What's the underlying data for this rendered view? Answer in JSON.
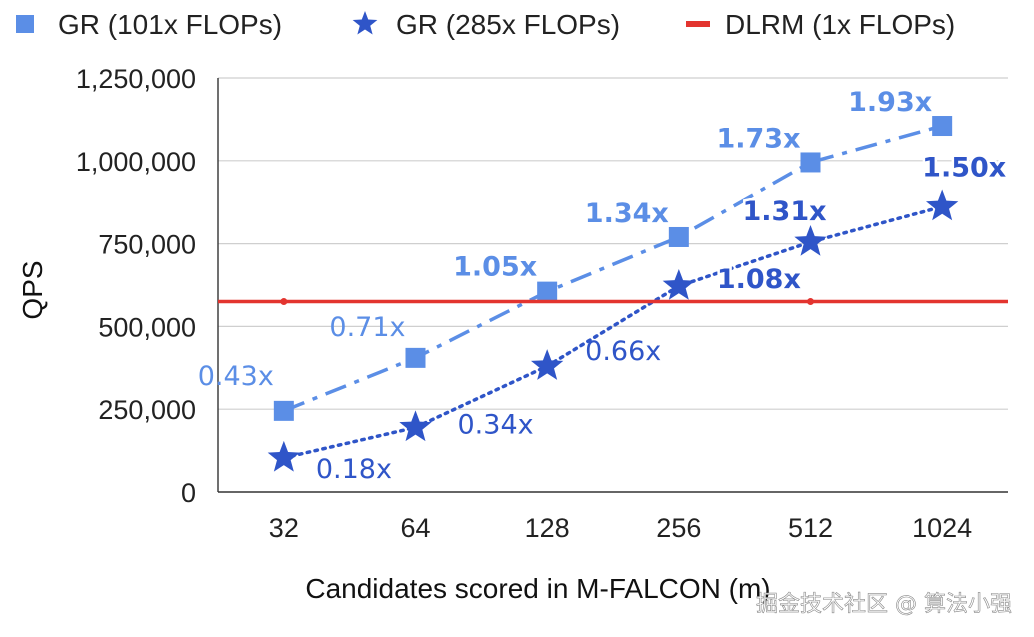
{
  "chart_data": {
    "type": "line",
    "title": "",
    "xlabel": "Candidates scored in M-FALCON (m)",
    "ylabel": "QPS",
    "categories": [
      "32",
      "64",
      "128",
      "256",
      "512",
      "1024"
    ],
    "yticks": [
      "0",
      "250,000",
      "500,000",
      "750,000",
      "1,000,000",
      "1,250,000"
    ],
    "ylim": [
      0,
      1250000
    ],
    "grid": true,
    "legend_position": "top",
    "series": [
      {
        "name": "GR (101x FLOPs)",
        "marker": "square",
        "line_style": "dash-dot",
        "color": "#5b8ee6",
        "values": [
          245000,
          405000,
          605000,
          770000,
          995000,
          1105000
        ],
        "labels": [
          "0.43x",
          "0.71x",
          "1.05x",
          "1.34x",
          "1.73x",
          "1.93x"
        ],
        "labels_bold": [
          false,
          false,
          true,
          true,
          true,
          true
        ]
      },
      {
        "name": "GR (285x FLOPs)",
        "marker": "star",
        "line_style": "dotted",
        "color": "#2f55c8",
        "values": [
          103000,
          195000,
          380000,
          622000,
          755000,
          862000
        ],
        "labels": [
          "0.18x",
          "0.34x",
          "0.66x",
          "1.08x",
          "1.31x",
          "1.50x"
        ],
        "labels_bold": [
          false,
          false,
          false,
          true,
          true,
          true
        ]
      },
      {
        "name": "DLRM (1x FLOPs)",
        "marker": "none",
        "line_style": "solid",
        "color": "#e3342f",
        "constant_value": 575000
      }
    ]
  },
  "watermark": "掘金技术社区 @ 算法小强"
}
